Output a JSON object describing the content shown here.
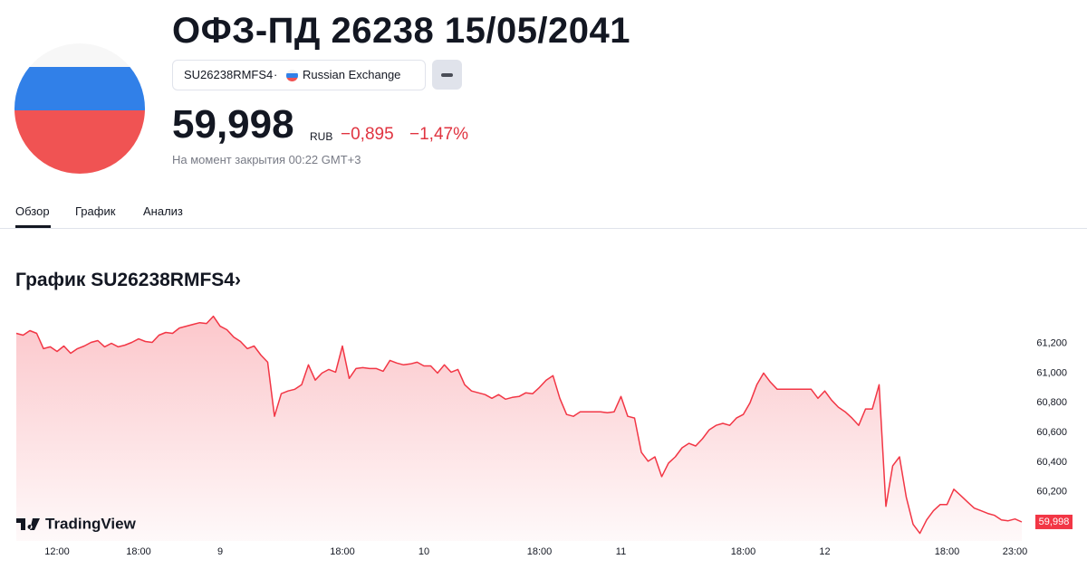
{
  "header": {
    "title": "ОФЗ-ПД 26238 15/05/2041",
    "ticker": "SU26238RMFS4",
    "separator": "·",
    "exchange": "Russian Exchange",
    "price": "59,998",
    "currency": "RUB",
    "change": "−0,895",
    "change_pct": "−1,47%",
    "timestamp": "На момент закрытия 00:22 GMT+3"
  },
  "tabs": [
    "Обзор",
    "График",
    "Анализ"
  ],
  "section_title": "График SU26238RMFS4›",
  "chart_data": {
    "type": "area",
    "color": "#f23645",
    "grid": false,
    "watermark": "TradingView",
    "ylim": [
      59.87,
      61.41
    ],
    "yticks": [
      {
        "value": 60.2,
        "label": "60,200"
      },
      {
        "value": 60.4,
        "label": "60,400"
      },
      {
        "value": 60.6,
        "label": "60,600"
      },
      {
        "value": 60.8,
        "label": "60,800"
      },
      {
        "value": 61.0,
        "label": "61,000"
      },
      {
        "value": 61.2,
        "label": "61,200"
      }
    ],
    "last_value_label": "59,998",
    "categories": [
      null,
      null,
      null,
      null,
      null,
      null,
      "12:00",
      null,
      null,
      null,
      null,
      null,
      null,
      null,
      null,
      null,
      null,
      null,
      "18:00",
      null,
      null,
      null,
      null,
      null,
      null,
      null,
      null,
      null,
      null,
      null,
      "9",
      null,
      null,
      null,
      null,
      null,
      null,
      null,
      null,
      null,
      null,
      null,
      null,
      null,
      null,
      null,
      null,
      null,
      "18:00",
      null,
      null,
      null,
      null,
      null,
      null,
      null,
      null,
      null,
      null,
      null,
      "10",
      null,
      null,
      null,
      null,
      null,
      null,
      null,
      null,
      null,
      null,
      null,
      null,
      null,
      null,
      null,
      null,
      "18:00",
      null,
      null,
      null,
      null,
      null,
      null,
      null,
      null,
      null,
      null,
      null,
      "11",
      null,
      null,
      null,
      null,
      null,
      null,
      null,
      null,
      null,
      null,
      null,
      null,
      null,
      null,
      null,
      null,
      null,
      "18:00",
      null,
      null,
      null,
      null,
      null,
      null,
      null,
      null,
      null,
      null,
      null,
      "12",
      null,
      null,
      null,
      null,
      null,
      null,
      null,
      null,
      null,
      null,
      null,
      null,
      null,
      null,
      null,
      null,
      null,
      "18:00",
      null,
      null,
      null,
      null,
      null,
      null,
      null,
      null,
      null,
      "23:00",
      null
    ],
    "values": [
      61.267,
      61.255,
      61.285,
      61.267,
      61.164,
      61.176,
      61.145,
      61.182,
      61.133,
      61.164,
      61.182,
      61.206,
      61.218,
      61.176,
      61.2,
      61.176,
      61.188,
      61.206,
      61.23,
      61.212,
      61.206,
      61.255,
      61.273,
      61.267,
      61.303,
      61.315,
      61.327,
      61.339,
      61.333,
      61.382,
      61.315,
      61.291,
      61.242,
      61.212,
      61.164,
      61.182,
      61.121,
      61.073,
      60.709,
      60.861,
      60.879,
      60.891,
      60.921,
      61.055,
      60.952,
      61.0,
      61.024,
      61.006,
      61.182,
      60.964,
      61.03,
      61.036,
      61.03,
      61.03,
      61.012,
      61.085,
      61.067,
      61.055,
      61.061,
      61.073,
      61.048,
      61.048,
      61.0,
      61.055,
      61.006,
      61.024,
      60.921,
      60.879,
      60.867,
      60.855,
      60.83,
      60.855,
      60.824,
      60.836,
      60.842,
      60.867,
      60.861,
      60.903,
      60.952,
      60.982,
      60.83,
      60.721,
      60.709,
      60.739,
      60.739,
      60.739,
      60.739,
      60.733,
      60.739,
      60.842,
      60.709,
      60.697,
      60.467,
      60.406,
      60.436,
      60.303,
      60.394,
      60.436,
      60.497,
      60.527,
      60.509,
      60.558,
      60.618,
      60.648,
      60.661,
      60.648,
      60.697,
      60.721,
      60.8,
      60.921,
      61.0,
      60.939,
      60.891,
      60.891,
      60.891,
      60.891,
      60.891,
      60.891,
      60.83,
      60.879,
      60.818,
      60.77,
      60.739,
      60.697,
      60.648,
      60.758,
      60.758,
      60.921,
      60.103,
      60.376,
      60.436,
      60.164,
      59.982,
      59.921,
      60.012,
      60.073,
      60.115,
      60.115,
      60.218,
      60.176,
      60.133,
      60.091,
      60.073,
      60.055,
      60.042,
      60.012,
      60.006,
      60.018,
      59.998
    ]
  }
}
